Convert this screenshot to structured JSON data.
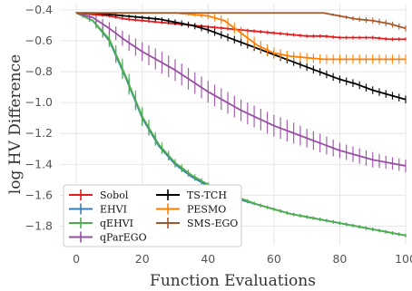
{
  "chart_data": {
    "type": "line",
    "title": "",
    "xlabel": "Function Evaluations",
    "ylabel": "log HV Difference",
    "xlim": [
      -5,
      100
    ],
    "ylim": [
      -1.92,
      -0.36
    ],
    "x_ticks": [
      0,
      20,
      40,
      60,
      80,
      100
    ],
    "x_tick_labels": [
      "0",
      "20",
      "40",
      "60",
      "80",
      "100"
    ],
    "y_ticks": [
      -0.4,
      -0.6,
      -0.8,
      -1.0,
      -1.2,
      -1.4,
      -1.6,
      -1.8
    ],
    "y_tick_labels": [
      "−0.4",
      "−0.6",
      "−0.8",
      "−1.0",
      "−1.2",
      "−1.4",
      "−1.6",
      "−1.8"
    ],
    "grid": true,
    "legend_position": "lower-left",
    "legend_columns": 2,
    "error_bars": true,
    "x": [
      0,
      5,
      10,
      15,
      20,
      25,
      30,
      35,
      40,
      45,
      50,
      55,
      60,
      65,
      70,
      75,
      80,
      85,
      90,
      95,
      100
    ],
    "series": [
      {
        "name": "Sobol",
        "color": "#e41a1c",
        "values": [
          -0.42,
          -0.43,
          -0.44,
          -0.46,
          -0.47,
          -0.48,
          -0.49,
          -0.5,
          -0.51,
          -0.52,
          -0.53,
          -0.54,
          -0.55,
          -0.56,
          -0.57,
          -0.57,
          -0.58,
          -0.58,
          -0.58,
          -0.59,
          -0.59
        ],
        "errors": [
          0.005,
          0.008,
          0.01,
          0.01,
          0.01,
          0.01,
          0.01,
          0.01,
          0.012,
          0.012,
          0.012,
          0.012,
          0.012,
          0.012,
          0.012,
          0.012,
          0.012,
          0.012,
          0.012,
          0.012,
          0.012
        ]
      },
      {
        "name": "EHVI",
        "color": "#377eb8",
        "values": [
          -0.42,
          -0.47,
          -0.6,
          -0.84,
          -1.1,
          -1.28,
          -1.4,
          -1.48,
          -1.54,
          -1.59,
          -1.63,
          -1.66,
          -1.69,
          -1.72,
          -1.74,
          -1.76,
          -1.78,
          -1.8,
          -1.82,
          -1.84,
          -1.86
        ],
        "errors": [
          0.005,
          0.02,
          0.04,
          0.05,
          0.05,
          0.03,
          0.02,
          0.015,
          0.012,
          0.01,
          0.01,
          0.01,
          0.01,
          0.01,
          0.01,
          0.01,
          0.01,
          0.01,
          0.01,
          0.01,
          0.01
        ]
      },
      {
        "name": "qEHVI",
        "color": "#4daf4a",
        "values": [
          -0.42,
          -0.47,
          -0.59,
          -0.83,
          -1.09,
          -1.27,
          -1.39,
          -1.47,
          -1.53,
          -1.58,
          -1.62,
          -1.66,
          -1.69,
          -1.72,
          -1.74,
          -1.76,
          -1.78,
          -1.8,
          -1.82,
          -1.84,
          -1.86
        ],
        "errors": [
          0.005,
          0.02,
          0.05,
          0.07,
          0.06,
          0.04,
          0.025,
          0.02,
          0.015,
          0.012,
          0.012,
          0.012,
          0.012,
          0.012,
          0.012,
          0.012,
          0.012,
          0.012,
          0.012,
          0.012,
          0.012
        ]
      },
      {
        "name": "qParEGO",
        "color": "#984ea3",
        "values": [
          -0.42,
          -0.45,
          -0.52,
          -0.6,
          -0.67,
          -0.73,
          -0.79,
          -0.86,
          -0.93,
          -0.99,
          -1.05,
          -1.1,
          -1.15,
          -1.19,
          -1.23,
          -1.27,
          -1.31,
          -1.34,
          -1.37,
          -1.39,
          -1.41
        ],
        "errors": [
          0.005,
          0.02,
          0.04,
          0.05,
          0.06,
          0.07,
          0.07,
          0.07,
          0.07,
          0.07,
          0.07,
          0.07,
          0.07,
          0.07,
          0.06,
          0.06,
          0.05,
          0.05,
          0.05,
          0.04,
          0.04
        ]
      },
      {
        "name": "TS-TCH",
        "color": "#000000",
        "values": [
          -0.42,
          -0.42,
          -0.43,
          -0.44,
          -0.45,
          -0.46,
          -0.48,
          -0.5,
          -0.53,
          -0.57,
          -0.61,
          -0.65,
          -0.69,
          -0.73,
          -0.77,
          -0.81,
          -0.85,
          -0.88,
          -0.92,
          -0.95,
          -0.98
        ],
        "errors": [
          0.003,
          0.005,
          0.008,
          0.01,
          0.012,
          0.015,
          0.018,
          0.02,
          0.022,
          0.025,
          0.025,
          0.025,
          0.025,
          0.025,
          0.025,
          0.025,
          0.025,
          0.025,
          0.025,
          0.025,
          0.025
        ]
      },
      {
        "name": "PESMO",
        "color": "#ff7f00",
        "values": [
          -0.42,
          -0.42,
          -0.42,
          -0.42,
          -0.42,
          -0.42,
          -0.42,
          -0.43,
          -0.44,
          -0.47,
          -0.55,
          -0.63,
          -0.68,
          -0.7,
          -0.71,
          -0.72,
          -0.72,
          -0.72,
          -0.72,
          -0.72,
          -0.72
        ],
        "errors": [
          0.002,
          0.002,
          0.002,
          0.002,
          0.003,
          0.003,
          0.004,
          0.01,
          0.02,
          0.03,
          0.04,
          0.04,
          0.035,
          0.03,
          0.03,
          0.03,
          0.03,
          0.03,
          0.03,
          0.03,
          0.03
        ]
      },
      {
        "name": "SMS-EGO",
        "color": "#a65628",
        "values": [
          -0.42,
          -0.42,
          -0.42,
          -0.42,
          -0.42,
          -0.42,
          -0.42,
          -0.42,
          -0.42,
          -0.42,
          -0.42,
          -0.42,
          -0.42,
          -0.42,
          -0.42,
          -0.42,
          -0.44,
          -0.46,
          -0.47,
          -0.49,
          -0.52
        ],
        "errors": [
          0.002,
          0.002,
          0.002,
          0.002,
          0.002,
          0.002,
          0.002,
          0.002,
          0.002,
          0.002,
          0.002,
          0.002,
          0.002,
          0.002,
          0.002,
          0.005,
          0.01,
          0.015,
          0.02,
          0.02,
          0.02
        ]
      }
    ],
    "legend": {
      "col1": [
        "Sobol",
        "EHVI",
        "qEHVI",
        "qParEGO"
      ],
      "col2": [
        "TS-TCH",
        "PESMO",
        "SMS-EGO"
      ]
    }
  }
}
